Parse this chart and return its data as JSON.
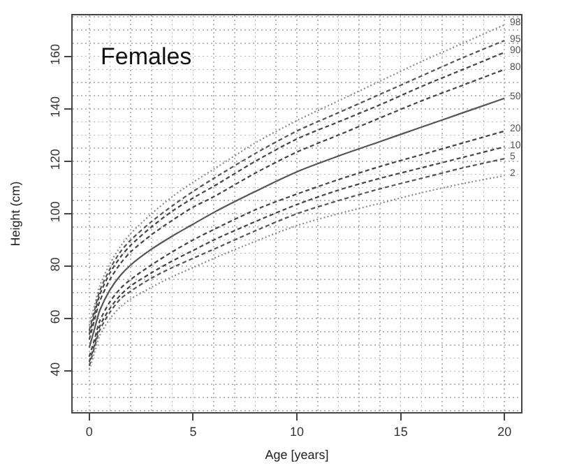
{
  "chart_data": {
    "type": "line",
    "title": "Females",
    "xlabel": "Age [years]",
    "ylabel": "Height (cm)",
    "x": [
      0,
      0.25,
      0.5,
      1,
      1.5,
      2,
      3,
      4,
      5,
      6,
      8,
      10,
      12,
      14,
      16,
      18,
      20
    ],
    "series": [
      {
        "name": "98",
        "color": "#8c8c8c",
        "line_style": "dotted",
        "values": [
          57.5,
          65,
          72.5,
          81,
          87.5,
          92.5,
          100,
          106.5,
          112,
          117,
          127,
          135.5,
          143,
          150.5,
          158,
          165,
          172
        ]
      },
      {
        "name": "95",
        "color": "#555555",
        "line_style": "dashed",
        "values": [
          55.5,
          63,
          70.5,
          79,
          85.5,
          90,
          97,
          103,
          108.5,
          113.5,
          123,
          131.5,
          138.5,
          145.5,
          152.5,
          159.5,
          166
        ]
      },
      {
        "name": "90",
        "color": "#444444",
        "line_style": "dashed",
        "values": [
          54,
          61.5,
          69,
          77.5,
          83.5,
          88,
          95,
          101,
          106,
          110.5,
          120,
          128.5,
          135,
          141.5,
          148.5,
          155,
          161.5
        ]
      },
      {
        "name": "80",
        "color": "#444444",
        "line_style": "dashed",
        "values": [
          52,
          59.5,
          66.5,
          75,
          81,
          85.5,
          92,
          97.5,
          102.5,
          106.5,
          115.5,
          123.5,
          130,
          136.5,
          143,
          149,
          155
        ]
      },
      {
        "name": "50",
        "color": "#555555",
        "line_style": "solid",
        "values": [
          49,
          56,
          63,
          71,
          76.5,
          80.5,
          86.5,
          91.5,
          96,
          100.5,
          108.5,
          116,
          122,
          127.5,
          133,
          138.5,
          144
        ]
      },
      {
        "name": "20",
        "color": "#444444",
        "line_style": "dashed",
        "values": [
          45.5,
          52,
          59,
          66.5,
          71.5,
          75,
          80.5,
          85.5,
          90,
          94,
          101.5,
          107.5,
          113,
          118,
          122.5,
          127,
          131.5
        ]
      },
      {
        "name": "10",
        "color": "#444444",
        "line_style": "dashed",
        "values": [
          43.5,
          50,
          57,
          64,
          69,
          72.5,
          77.5,
          82,
          86,
          90,
          97,
          103.5,
          109,
          113.5,
          117.5,
          121.5,
          125.5
        ]
      },
      {
        "name": "5",
        "color": "#555555",
        "line_style": "dashed",
        "values": [
          42,
          49,
          55.5,
          62.5,
          67.5,
          70.5,
          75.5,
          79.5,
          83,
          86.5,
          93.5,
          100,
          105,
          109.5,
          113.5,
          117.5,
          121
        ]
      },
      {
        "name": "2",
        "color": "#8c8c8c",
        "line_style": "dotted",
        "values": [
          40.5,
          47,
          53.5,
          60,
          64.5,
          67.5,
          72,
          76,
          79.5,
          83,
          89.5,
          95.5,
          100,
          104,
          108,
          111.5,
          114.5
        ]
      }
    ],
    "xlim": [
      -0.8,
      20.8
    ],
    "ylim": [
      24.4,
      175.6
    ],
    "xticks": [
      0,
      {
        "value": 1,
        "label": null
      },
      {
        "value": 2,
        "label": null
      },
      {
        "value": 3,
        "label": null
      },
      {
        "value": 4,
        "label": null
      },
      5,
      {
        "value": 6,
        "label": null
      },
      {
        "value": 7,
        "label": null
      },
      {
        "value": 8,
        "label": null
      },
      {
        "value": 9,
        "label": null
      },
      10,
      {
        "value": 11,
        "label": null
      },
      {
        "value": 12,
        "label": null
      },
      {
        "value": 13,
        "label": null
      },
      {
        "value": 14,
        "label": null
      },
      15,
      {
        "value": 16,
        "label": null
      },
      {
        "value": 17,
        "label": null
      },
      {
        "value": 18,
        "label": null
      },
      {
        "value": 19,
        "label": null
      },
      20
    ],
    "yticks": [
      {
        "value": 25,
        "label": null
      },
      {
        "value": 30,
        "label": null
      },
      {
        "value": 35,
        "label": null
      },
      40,
      {
        "value": 45,
        "label": null
      },
      {
        "value": 50,
        "label": null
      },
      {
        "value": 55,
        "label": null
      },
      60,
      {
        "value": 65,
        "label": null
      },
      {
        "value": 70,
        "label": null
      },
      {
        "value": 75,
        "label": null
      },
      80,
      {
        "value": 85,
        "label": null
      },
      {
        "value": 90,
        "label": null
      },
      {
        "value": 95,
        "label": null
      },
      100,
      {
        "value": 105,
        "label": null
      },
      {
        "value": 110,
        "label": null
      },
      {
        "value": 115,
        "label": null
      },
      120,
      {
        "value": 125,
        "label": null
      },
      {
        "value": 130,
        "label": null
      },
      {
        "value": 135,
        "label": null
      },
      140,
      {
        "value": 145,
        "label": null
      },
      {
        "value": 150,
        "label": null
      },
      {
        "value": 155,
        "label": null
      },
      160,
      {
        "value": 165,
        "label": null
      },
      {
        "value": 170,
        "label": null
      },
      {
        "value": 175,
        "label": null
      }
    ],
    "grid": true
  }
}
